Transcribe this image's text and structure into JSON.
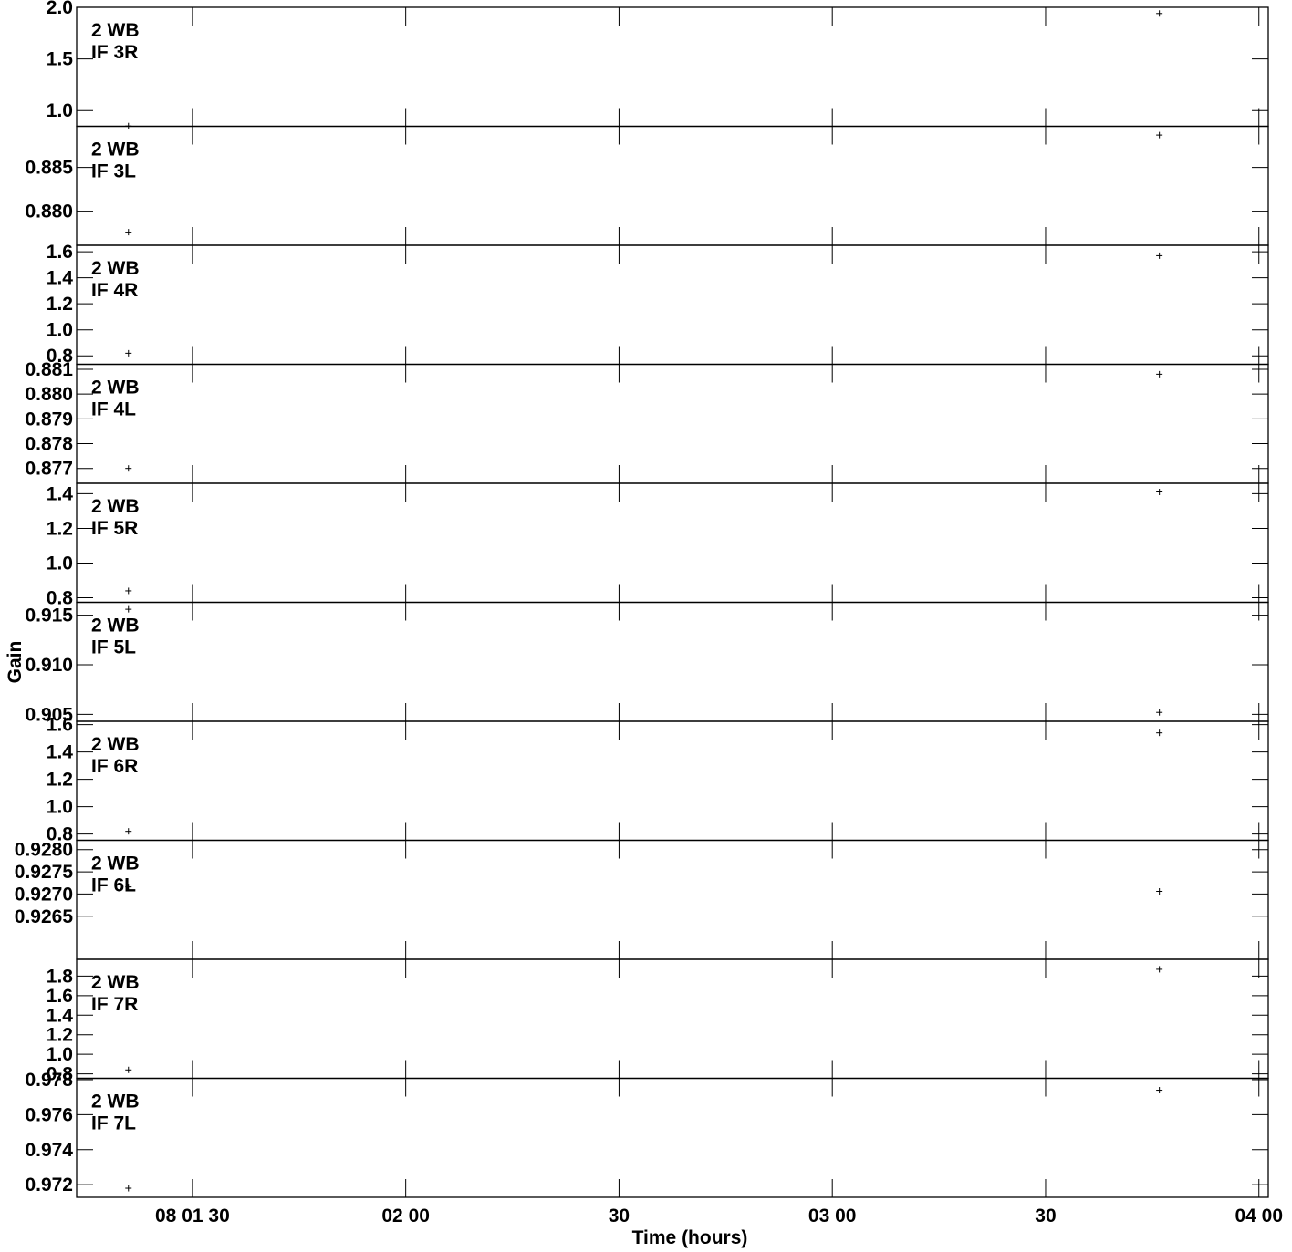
{
  "chart_data": {
    "type": "scatter",
    "xlabel": "Time (hours)",
    "ylabel": "Gain",
    "xlim": [
      "01:13:43",
      "04:01:19"
    ],
    "x_tick_labels": [
      {
        "time": "01:30",
        "label": "08 01 30"
      },
      {
        "time": "02:00",
        "label": "02 00"
      },
      {
        "time": "02:30",
        "label": "30"
      },
      {
        "time": "03:00",
        "label": "03 00"
      },
      {
        "time": "03:30",
        "label": "30"
      },
      {
        "time": "04:00",
        "label": "04 00"
      }
    ],
    "panels": [
      {
        "line1": "2 WB",
        "line2": "IF 3R",
        "ylim": [
          0.8475,
          2.0
        ],
        "yticks": [
          {
            "v": 1.0,
            "label": "1.0"
          },
          {
            "v": 1.5,
            "label": "1.5"
          },
          {
            "v": 2.0,
            "label": "2.0"
          }
        ],
        "points": [
          {
            "x": "01:21",
            "y": 0.85
          },
          {
            "x": "03:46",
            "y": 1.94
          }
        ]
      },
      {
        "line1": "2 WB",
        "line2": "IF 3L",
        "ylim": [
          0.8761,
          0.8897
        ],
        "yticks": [
          {
            "v": 0.88,
            "label": "0.880"
          },
          {
            "v": 0.885,
            "label": "0.885"
          }
        ],
        "points": [
          {
            "x": "01:21",
            "y": 0.8776
          },
          {
            "x": "03:46",
            "y": 0.8887
          }
        ]
      },
      {
        "line1": "2 WB",
        "line2": "IF 4R",
        "ylim": [
          0.735,
          1.65
        ],
        "yticks": [
          {
            "v": 0.8,
            "label": "0.8"
          },
          {
            "v": 1.0,
            "label": "1.0"
          },
          {
            "v": 1.2,
            "label": "1.2"
          },
          {
            "v": 1.4,
            "label": "1.4"
          },
          {
            "v": 1.6,
            "label": "1.6"
          }
        ],
        "points": [
          {
            "x": "01:21",
            "y": 0.82
          },
          {
            "x": "03:46",
            "y": 1.57
          }
        ]
      },
      {
        "line1": "2 WB",
        "line2": "IF 4L",
        "ylim": [
          0.8764,
          0.8812
        ],
        "yticks": [
          {
            "v": 0.877,
            "label": "0.877"
          },
          {
            "v": 0.878,
            "label": "0.878"
          },
          {
            "v": 0.879,
            "label": "0.879"
          },
          {
            "v": 0.88,
            "label": "0.880"
          },
          {
            "v": 0.881,
            "label": "0.881"
          }
        ],
        "points": [
          {
            "x": "01:21",
            "y": 0.877
          },
          {
            "x": "03:46",
            "y": 0.8808
          }
        ]
      },
      {
        "line1": "2 WB",
        "line2": "IF 5R",
        "ylim": [
          0.774,
          1.46
        ],
        "yticks": [
          {
            "v": 0.8,
            "label": "0.8"
          },
          {
            "v": 1.0,
            "label": "1.0"
          },
          {
            "v": 1.2,
            "label": "1.2"
          },
          {
            "v": 1.4,
            "label": "1.4"
          }
        ],
        "points": [
          {
            "x": "01:21",
            "y": 0.84
          },
          {
            "x": "03:46",
            "y": 1.41
          }
        ]
      },
      {
        "line1": "2 WB",
        "line2": "IF 5L",
        "ylim": [
          0.9043,
          0.9163
        ],
        "yticks": [
          {
            "v": 0.905,
            "label": "0.905"
          },
          {
            "v": 0.91,
            "label": "0.910"
          },
          {
            "v": 0.915,
            "label": "0.915"
          }
        ],
        "points": [
          {
            "x": "01:21",
            "y": 0.9156
          },
          {
            "x": "03:46",
            "y": 0.9052
          }
        ]
      },
      {
        "line1": "2 WB",
        "line2": "IF 6R",
        "ylim": [
          0.7545,
          1.6245
        ],
        "yticks": [
          {
            "v": 0.8,
            "label": "0.8"
          },
          {
            "v": 1.0,
            "label": "1.0"
          },
          {
            "v": 1.2,
            "label": "1.2"
          },
          {
            "v": 1.4,
            "label": "1.4"
          },
          {
            "v": 1.6,
            "label": "1.6"
          }
        ],
        "points": [
          {
            "x": "01:21",
            "y": 0.82
          },
          {
            "x": "03:46",
            "y": 1.54
          }
        ]
      },
      {
        "line1": "2 WB",
        "line2": "IF 6L",
        "ylim": [
          0.92553,
          0.92821
        ],
        "yticks": [
          {
            "v": 0.9265,
            "label": "0.9265"
          },
          {
            "v": 0.927,
            "label": "0.9270"
          },
          {
            "v": 0.9275,
            "label": "0.9275"
          },
          {
            "v": 0.928,
            "label": "0.9280"
          }
        ],
        "points": [
          {
            "x": "01:21",
            "y": 0.92716
          },
          {
            "x": "03:46",
            "y": 0.92706
          }
        ]
      },
      {
        "line1": "2 WB",
        "line2": "IF 7R",
        "ylim": [
          0.754,
          1.972
        ],
        "yticks": [
          {
            "v": 0.8,
            "label": "0.8"
          },
          {
            "v": 1.0,
            "label": "1.0"
          },
          {
            "v": 1.2,
            "label": "1.2"
          },
          {
            "v": 1.4,
            "label": "1.4"
          },
          {
            "v": 1.6,
            "label": "1.6"
          },
          {
            "v": 1.8,
            "label": "1.8"
          }
        ],
        "points": [
          {
            "x": "01:21",
            "y": 0.84
          },
          {
            "x": "03:46",
            "y": 1.87
          }
        ]
      },
      {
        "line1": "2 WB",
        "line2": "IF 7L",
        "ylim": [
          0.97128,
          0.97808
        ],
        "yticks": [
          {
            "v": 0.972,
            "label": "0.972"
          },
          {
            "v": 0.974,
            "label": "0.974"
          },
          {
            "v": 0.976,
            "label": "0.976"
          },
          {
            "v": 0.978,
            "label": "0.978"
          }
        ],
        "points": [
          {
            "x": "01:21",
            "y": 0.9718
          },
          {
            "x": "03:46",
            "y": 0.9774
          }
        ]
      }
    ]
  }
}
